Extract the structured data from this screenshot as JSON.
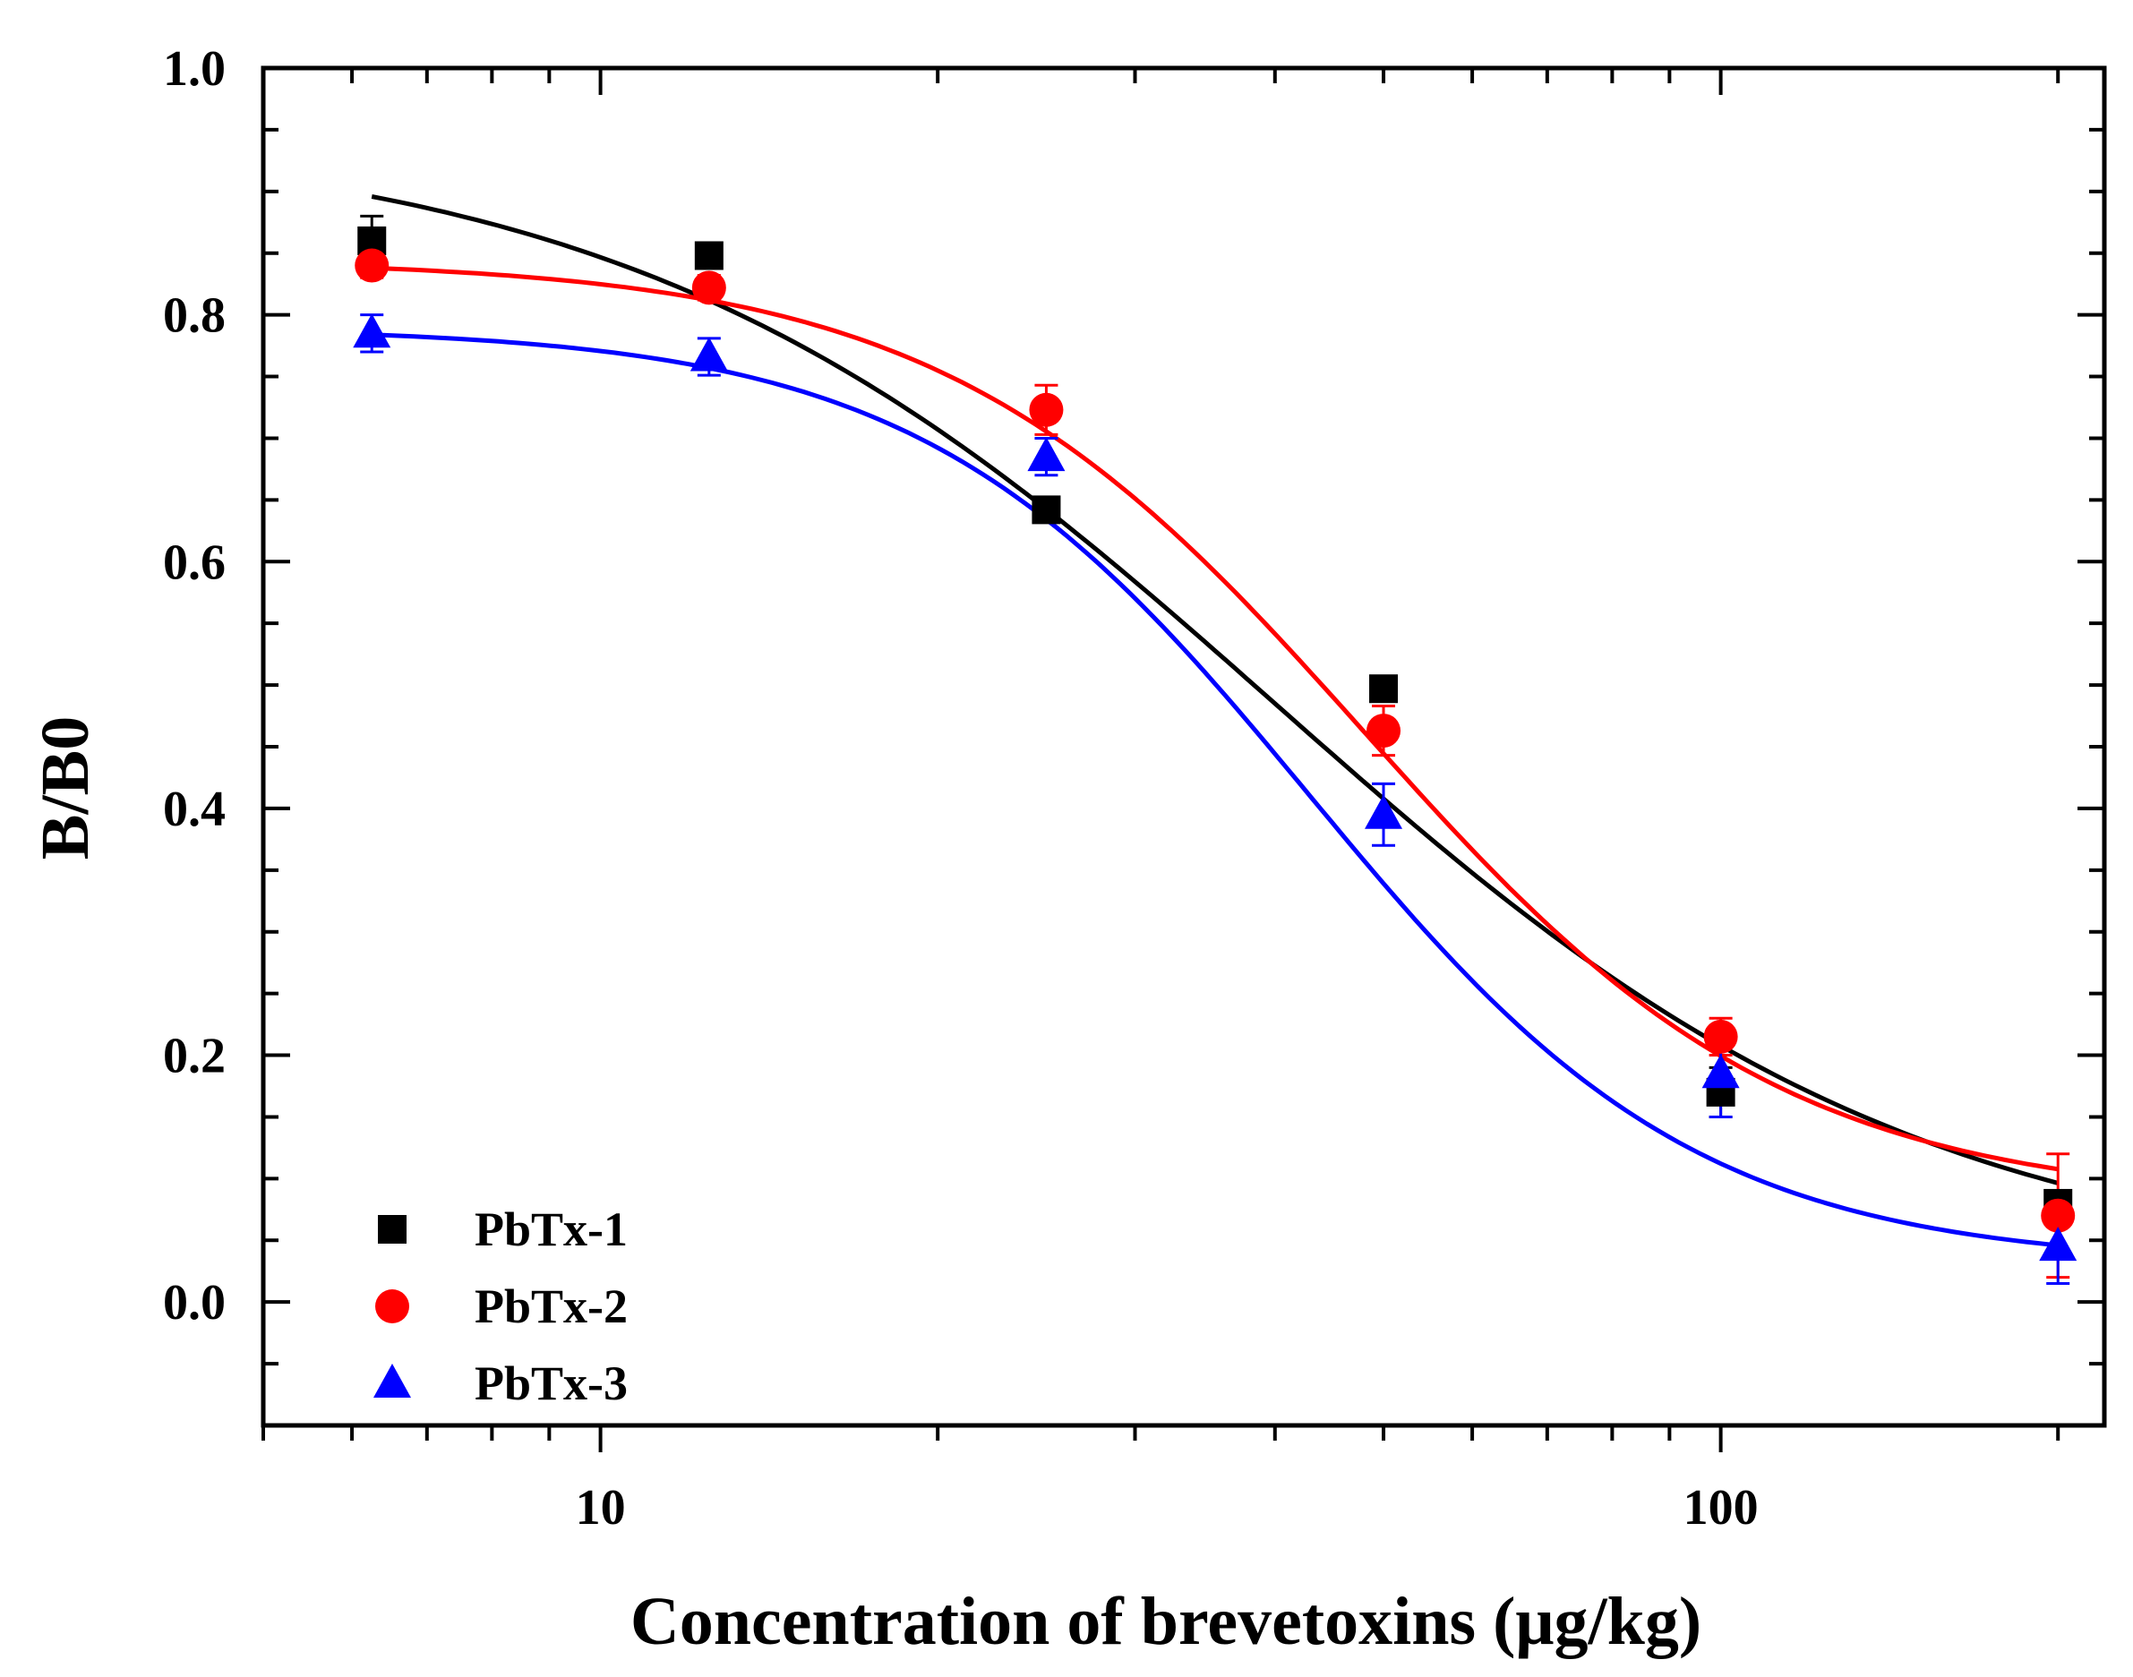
{
  "chart_data": {
    "type": "scatter",
    "xscale": "log",
    "xlim": [
      5,
      220
    ],
    "ylim": [
      -0.1,
      1.0
    ],
    "xlabel": "Concentration of brevetoxins (μg/kg)",
    "ylabel": "B/B0",
    "xticks": [
      10,
      100
    ],
    "xtick_labels": [
      "10",
      "100"
    ],
    "yticks": [
      0.0,
      0.2,
      0.4,
      0.6,
      0.8,
      1.0
    ],
    "ytick_labels": [
      "0.0",
      "0.2",
      "0.4",
      "0.6",
      "0.8",
      "1.0"
    ],
    "legend_position": "bottom-left",
    "x": [
      6.25,
      12.5,
      25,
      50,
      100,
      200
    ],
    "series": [
      {
        "name": "PbTx-1",
        "marker": "square",
        "color": "#000000",
        "values": [
          0.86,
          0.848,
          0.642,
          0.497,
          0.17,
          0.08
        ],
        "errors": [
          0.02,
          0.01,
          0.01,
          0.01,
          0.02,
          0.01
        ],
        "fit": {
          "top": 0.95,
          "bottom": 0.02,
          "ic50": 40,
          "hill": 1.5
        }
      },
      {
        "name": "PbTx-2",
        "marker": "circle",
        "color": "#ff0000",
        "values": [
          0.84,
          0.822,
          0.723,
          0.463,
          0.215,
          0.07
        ],
        "errors": [
          0.01,
          0.01,
          0.02,
          0.02,
          0.015,
          0.05
        ],
        "fit": {
          "top": 0.845,
          "bottom": 0.08,
          "ic50": 48,
          "hill": 2.3
        }
      },
      {
        "name": "PbTx-3",
        "marker": "triangle",
        "color": "#0000ff",
        "values": [
          0.785,
          0.766,
          0.685,
          0.395,
          0.185,
          0.045
        ],
        "errors": [
          0.015,
          0.015,
          0.015,
          0.025,
          0.035,
          0.03
        ],
        "fit": {
          "top": 0.79,
          "bottom": 0.03,
          "ic50": 43,
          "hill": 2.5
        }
      }
    ]
  }
}
